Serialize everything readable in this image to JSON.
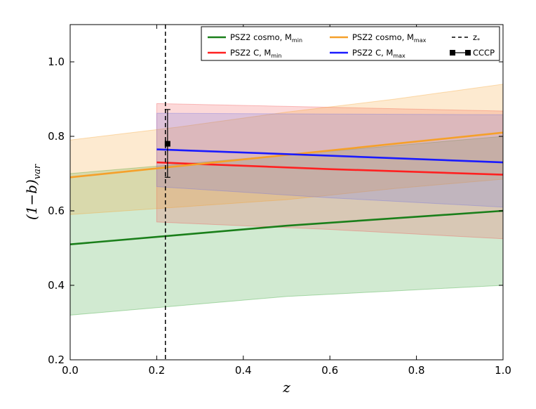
{
  "chart_data": {
    "type": "line",
    "xlabel": "z",
    "ylabel": "(1−b)",
    "ylabel_sub": "var",
    "xlim": [
      0.0,
      1.0
    ],
    "ylim": [
      0.2,
      1.1
    ],
    "x_ticks": [
      "0.0",
      "0.2",
      "0.4",
      "0.6",
      "0.8",
      "1.0"
    ],
    "y_ticks": [
      "0.2",
      "0.4",
      "0.6",
      "0.8",
      "1.0"
    ],
    "grid": false,
    "legend_position": "top-right",
    "series": [
      {
        "name": "PSZ2 cosmo, M",
        "name_sub": "min",
        "color": "#1a7f1a",
        "band_color": "#2ca02c",
        "x": [
          0.0,
          0.25,
          0.5,
          0.75,
          1.0
        ],
        "y": [
          0.51,
          0.535,
          0.56,
          0.58,
          0.6
        ],
        "y_low": [
          0.32,
          0.345,
          0.37,
          0.385,
          0.4
        ],
        "y_high": [
          0.7,
          0.725,
          0.75,
          0.775,
          0.8
        ]
      },
      {
        "name": "PSZ2 C, M",
        "name_sub": "min",
        "color": "#ff2020",
        "band_color": "#f05050",
        "x": [
          0.2,
          0.6,
          1.0
        ],
        "y": [
          0.73,
          0.712,
          0.697
        ],
        "y_low": [
          0.57,
          0.55,
          0.525
        ],
        "y_high": [
          0.888,
          0.878,
          0.868
        ]
      },
      {
        "name": "PSZ2 cosmo, M",
        "name_sub": "max",
        "color": "#f5a02a",
        "band_color": "#f5a02a",
        "x": [
          0.0,
          0.25,
          0.5,
          0.75,
          1.0
        ],
        "y": [
          0.69,
          0.72,
          0.75,
          0.78,
          0.81
        ],
        "y_low": [
          0.59,
          0.61,
          0.63,
          0.66,
          0.685
        ],
        "y_high": [
          0.79,
          0.825,
          0.865,
          0.9,
          0.94
        ]
      },
      {
        "name": "PSZ2 C, M",
        "name_sub": "max",
        "color": "#1a1aff",
        "band_color": "#7070e0",
        "x": [
          0.2,
          0.6,
          1.0
        ],
        "y": [
          0.765,
          0.748,
          0.73
        ],
        "y_low": [
          0.665,
          0.635,
          0.61
        ],
        "y_high": [
          0.862,
          0.86,
          0.858
        ]
      }
    ],
    "vline": {
      "name": "z",
      "name_sub": "*",
      "x": 0.22,
      "color": "#000000"
    },
    "errorbar": {
      "name": "CCCP",
      "x": 0.225,
      "y": 0.78,
      "y_low": 0.69,
      "y_high": 0.872,
      "color": "#000000"
    }
  }
}
